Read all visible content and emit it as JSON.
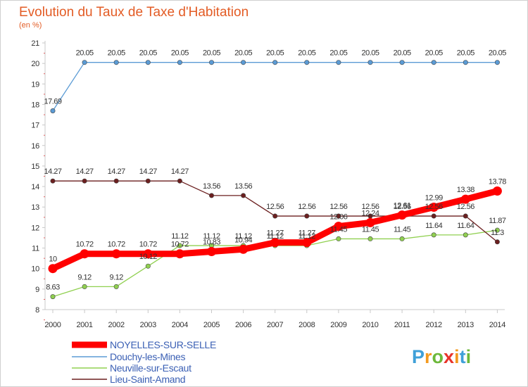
{
  "chart_data": {
    "type": "line",
    "title": "Evolution du Taux de Taxe d'Habitation",
    "subtitle": "(en %)",
    "x": [
      "2000",
      "2001",
      "2002",
      "2003",
      "2004",
      "2005",
      "2006",
      "2007",
      "2008",
      "2009",
      "2010",
      "2011",
      "2012",
      "2013",
      "2014"
    ],
    "ylim": [
      8,
      21
    ],
    "yticks": [
      8,
      9,
      10,
      11,
      12,
      13,
      14,
      15,
      16,
      17,
      18,
      19,
      20,
      21
    ],
    "grid": "off",
    "legend_position": "bottom-left",
    "series": [
      {
        "name": "NOYELLES-SUR-SELLE",
        "color": "#ff0000",
        "values": [
          10,
          10.72,
          10.72,
          10.72,
          10.72,
          10.83,
          10.94,
          11.27,
          11.27,
          12.06,
          12.24,
          12.61,
          12.99,
          13.38,
          13.78
        ],
        "labels": [
          "10",
          "10.72",
          "10.72",
          "10.72",
          "10.72",
          "10.83",
          "10.94",
          "11.27",
          "11.27",
          "12.06",
          "12.24",
          "12.61",
          "12.99",
          "13.38",
          "13.78"
        ]
      },
      {
        "name": "Douchy-les-Mines",
        "color": "#5b9bd5",
        "values": [
          17.69,
          20.05,
          20.05,
          20.05,
          20.05,
          20.05,
          20.05,
          20.05,
          20.05,
          20.05,
          20.05,
          20.05,
          20.05,
          20.05,
          20.05
        ],
        "labels": [
          "17.69",
          "20.05",
          "20.05",
          "20.05",
          "20.05",
          "20.05",
          "20.05",
          "20.05",
          "20.05",
          "20.05",
          "20.05",
          "20.05",
          "20.05",
          "20.05",
          "20.05"
        ]
      },
      {
        "name": "Neuville-sur-Escaut",
        "color": "#90d050",
        "values": [
          8.63,
          9.12,
          9.12,
          10.12,
          11.12,
          11.12,
          11.12,
          11.12,
          11.12,
          11.45,
          11.45,
          11.45,
          11.64,
          11.64,
          11.87
        ],
        "labels": [
          "8.63",
          "9.12",
          "9.12",
          "10.12",
          "11.12",
          "11.12",
          "11.12",
          "11.12",
          "11.12",
          "11.45",
          "11.45",
          "11.45",
          "11.64",
          "11.64",
          "11.87"
        ]
      },
      {
        "name": "Lieu-Saint-Amand",
        "color": "#6b1f1f",
        "values": [
          14.27,
          14.27,
          14.27,
          14.27,
          14.27,
          13.56,
          13.56,
          12.56,
          12.56,
          12.56,
          12.56,
          12.56,
          12.56,
          12.56,
          11.3
        ],
        "labels": [
          "14.27",
          "14.27",
          "14.27",
          "14.27",
          "14.27",
          "13.56",
          "13.56",
          "12.56",
          "12.56",
          "12.56",
          "12.56",
          "12.56",
          "12.56",
          "12.56",
          "11.3"
        ]
      }
    ]
  },
  "brand": {
    "letters": [
      "P",
      "r",
      "o",
      "x",
      "i",
      "t",
      "i"
    ],
    "colors": [
      "#3fa0d8",
      "#f39a1e",
      "#6cb83a",
      "#e8332a",
      "#f39a1e",
      "#3fa0d8",
      "#6cb83a"
    ]
  }
}
